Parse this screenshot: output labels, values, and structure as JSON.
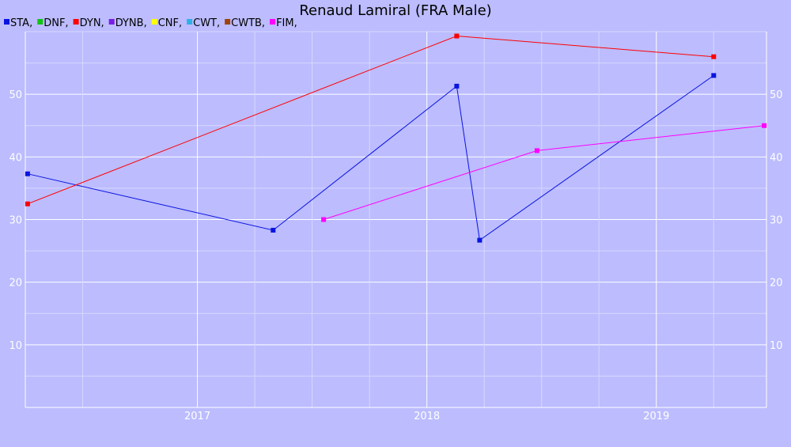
{
  "chart_data": {
    "type": "line",
    "title": "Renaud Lamiral (FRA Male)",
    "legend_position": "top-left",
    "legend": [
      {
        "label": "STA,",
        "color": "#0a14e0"
      },
      {
        "label": "DNF,",
        "color": "#12c312"
      },
      {
        "label": "DYN,",
        "color": "#ff0000"
      },
      {
        "label": "DYNB,",
        "color": "#7b1ce6"
      },
      {
        "label": "CNF,",
        "color": "#ffff00"
      },
      {
        "label": "CWT,",
        "color": "#2fb0e6"
      },
      {
        "label": "CWTB,",
        "color": "#a0420a"
      },
      {
        "label": "FIM,",
        "color": "#ff00ff"
      }
    ],
    "x_axis": {
      "type": "time",
      "range": [
        2016.25,
        2019.48
      ],
      "major_ticks": [
        {
          "value": 2017,
          "label": "2017"
        },
        {
          "value": 2018,
          "label": "2018"
        },
        {
          "value": 2019,
          "label": "2019"
        }
      ],
      "minor_ticks": [
        2016.5,
        2017.25,
        2017.5,
        2017.75,
        2018.25,
        2018.5,
        2018.75,
        2019.25
      ]
    },
    "y_axis": {
      "range": [
        0,
        60
      ],
      "ticks": [
        10,
        20,
        30,
        40,
        50
      ],
      "minor_ticks": [
        5,
        15,
        25,
        35,
        45,
        55,
        60
      ],
      "show_left": true,
      "show_right": true
    },
    "grid": true,
    "series": [
      {
        "name": "STA",
        "color": "#0a14e0",
        "points": [
          [
            2016.26,
            37.3
          ],
          [
            2017.33,
            28.3
          ],
          [
            2018.13,
            51.3
          ],
          [
            2018.23,
            26.7
          ],
          [
            2019.25,
            53.0
          ]
        ]
      },
      {
        "name": "DYN",
        "color": "#ff0000",
        "points": [
          [
            2016.26,
            32.5
          ],
          [
            2018.13,
            59.3
          ],
          [
            2019.25,
            56.0
          ]
        ]
      },
      {
        "name": "FIM",
        "color": "#ff00ff",
        "points": [
          [
            2017.55,
            30.0
          ],
          [
            2018.48,
            41.0
          ],
          [
            2019.47,
            45.0
          ]
        ]
      }
    ]
  }
}
